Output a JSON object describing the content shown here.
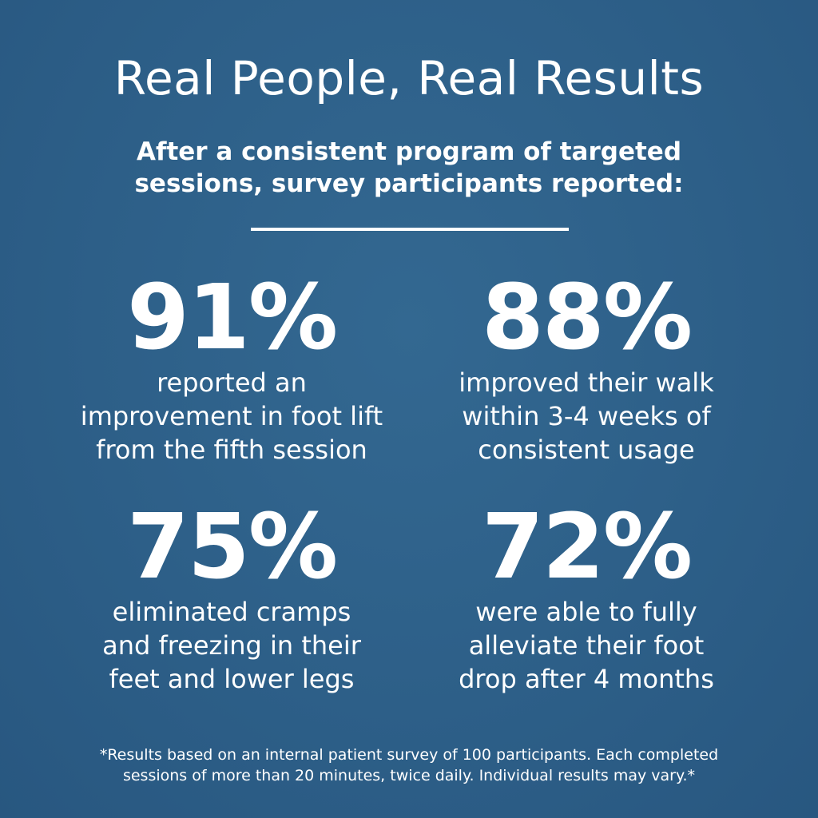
{
  "header": {
    "title": "Real People, Real Results",
    "subtitle_lines": [
      "After a consistent program of targeted",
      "sessions, survey participants reported:"
    ]
  },
  "stats": [
    {
      "value": "91%",
      "lines": [
        "reported an",
        "improvement in foot lift",
        "from the fifth session"
      ]
    },
    {
      "value": "88%",
      "lines": [
        "improved their walk",
        "within 3-4 weeks of",
        "consistent usage"
      ]
    },
    {
      "value": "75%",
      "lines": [
        "eliminated cramps",
        "and freezing in their",
        "feet and lower legs"
      ]
    },
    {
      "value": "72%",
      "lines": [
        "were able to fully",
        "alleviate their foot",
        "drop after 4 months"
      ]
    }
  ],
  "footnote": {
    "lines": [
      "*Results based on an internal patient survey of 100 participants. Each completed",
      "sessions of more than 20 minutes, twice daily. Individual results may vary.*"
    ]
  },
  "colors": {
    "background": "#2d5f88",
    "text": "#ffffff"
  }
}
